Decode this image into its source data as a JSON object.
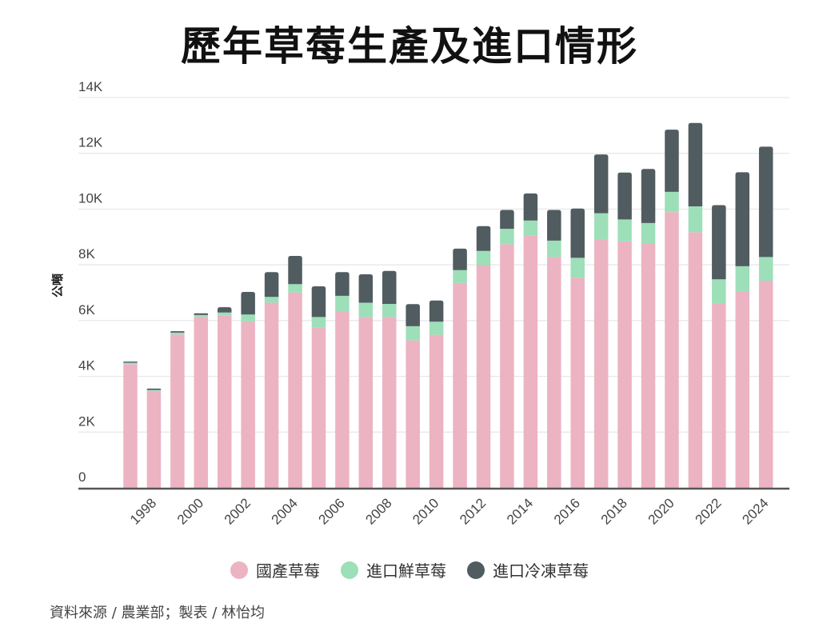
{
  "title": "歷年草莓生產及進口情形",
  "source": "資料來源 / 農業部；製表 / 林怡均",
  "chart_data": {
    "type": "bar",
    "stacked": true,
    "title": "歷年草莓生產及進口情形",
    "xlabel": "",
    "ylabel": "公噸",
    "ylim": [
      0,
      14000
    ],
    "yticks": [
      0,
      2000,
      4000,
      6000,
      8000,
      10000,
      12000,
      14000
    ],
    "ytick_labels": [
      "0",
      "2K",
      "4K",
      "6K",
      "8K",
      "10K",
      "12K",
      "14K"
    ],
    "grid": true,
    "legend_position": "bottom",
    "categories": [
      "1997",
      "1998",
      "1999",
      "2000",
      "2001",
      "2002",
      "2003",
      "2004",
      "2005",
      "2006",
      "2007",
      "2008",
      "2009",
      "2010",
      "2011",
      "2012",
      "2013",
      "2014",
      "2015",
      "2016",
      "2017",
      "2018",
      "2019",
      "2020",
      "2021",
      "2022",
      "2023",
      "2024"
    ],
    "xtick_labels": [
      "1998",
      "2000",
      "2002",
      "2004",
      "2006",
      "2008",
      "2010",
      "2012",
      "2014",
      "2016",
      "2018",
      "2020",
      "2022",
      "2024"
    ],
    "series": [
      {
        "name": "國產草莓",
        "color": "#ecb3c3",
        "values": [
          4440,
          3480,
          5500,
          6130,
          6190,
          5970,
          6640,
          7010,
          5760,
          6340,
          6130,
          6130,
          5290,
          5490,
          7350,
          7990,
          8740,
          9040,
          8280,
          7540,
          8910,
          8840,
          8750,
          9890,
          9170,
          6600,
          7060,
          7430
        ]
      },
      {
        "name": "進口鮮草莓",
        "color": "#9ddfb8",
        "values": [
          50,
          30,
          70,
          70,
          100,
          250,
          210,
          300,
          370,
          550,
          510,
          470,
          510,
          470,
          460,
          510,
          550,
          550,
          590,
          710,
          940,
          790,
          750,
          730,
          930,
          880,
          890,
          850
        ]
      },
      {
        "name": "進口冷凍草莓",
        "color": "#505c60",
        "values": [
          40,
          50,
          50,
          60,
          190,
          810,
          890,
          1010,
          1100,
          850,
          1020,
          1180,
          790,
          760,
          770,
          890,
          680,
          970,
          1100,
          1770,
          2110,
          1680,
          1940,
          2230,
          2990,
          2660,
          3370,
          3960
        ]
      }
    ]
  }
}
